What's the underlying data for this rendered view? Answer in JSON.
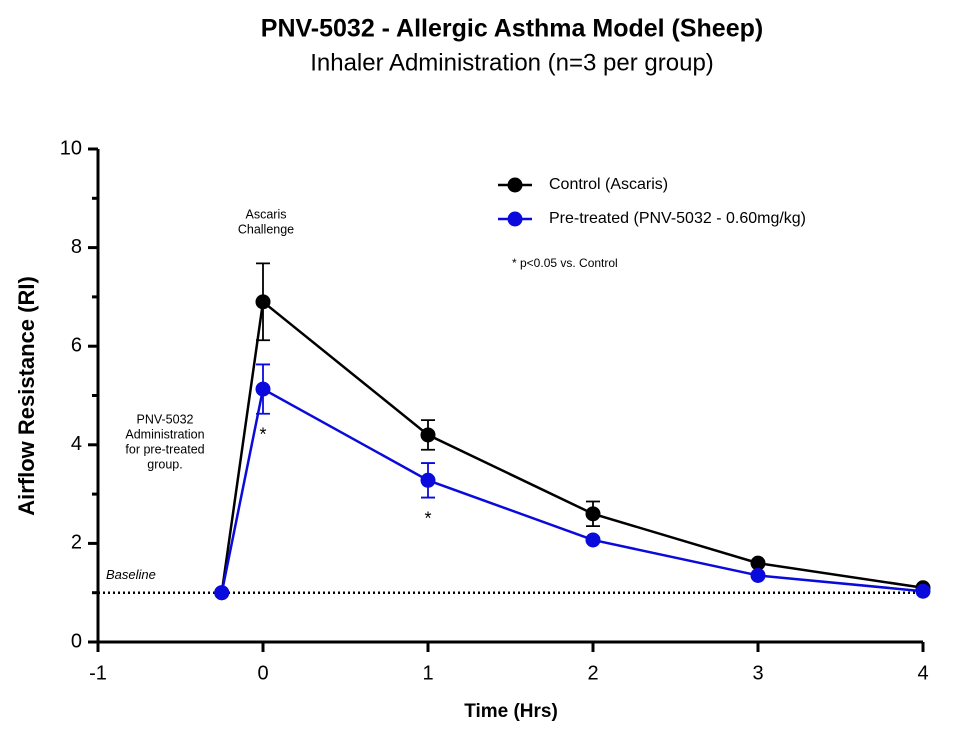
{
  "chart_data": {
    "type": "line",
    "title": "PNV-5032 - Allergic Asthma Model (Sheep)",
    "subtitle": "Inhaler Administration (n=3 per group)",
    "x_label": "Time (Hrs)",
    "y_label": "Airflow Resistance (RI)",
    "x": [
      -0.25,
      0,
      1,
      2,
      3,
      4
    ],
    "series": [
      {
        "name": "Control (Ascaris)",
        "color": "#000000",
        "values": [
          1,
          6.9,
          4.2,
          2.6,
          1.6,
          1.1
        ],
        "errors": [
          null,
          0.78,
          0.3,
          0.25,
          null,
          null
        ]
      },
      {
        "name": "Pre-treated (PNV-5032 - 0.60mg/kg)",
        "color": "#0a0adc",
        "values": [
          1,
          5.13,
          3.28,
          2.07,
          1.35,
          1.03
        ],
        "errors": [
          null,
          0.5,
          0.35,
          null,
          null,
          null
        ]
      }
    ],
    "xlim": [
      -1,
      4
    ],
    "xticks": [
      -1,
      0,
      1,
      2,
      3,
      4
    ],
    "ylim": [
      0,
      10
    ],
    "yticks": [
      0,
      2,
      4,
      6,
      8,
      10
    ],
    "yminor_ticks": [
      1,
      3,
      5,
      7,
      9
    ],
    "baseline": {
      "value": 1,
      "label": "Baseline"
    },
    "significance_markers": [
      {
        "x": 0,
        "label": "*"
      },
      {
        "x": 1,
        "label": "*"
      }
    ],
    "annotations": [
      {
        "lines": [
          "Ascaris",
          "Challenge"
        ]
      },
      {
        "lines": [
          "PNV-5032",
          "Administration",
          "for pre-treated",
          "group."
        ]
      },
      {
        "lines": [
          "* p<0.05 vs. Control"
        ]
      }
    ]
  }
}
